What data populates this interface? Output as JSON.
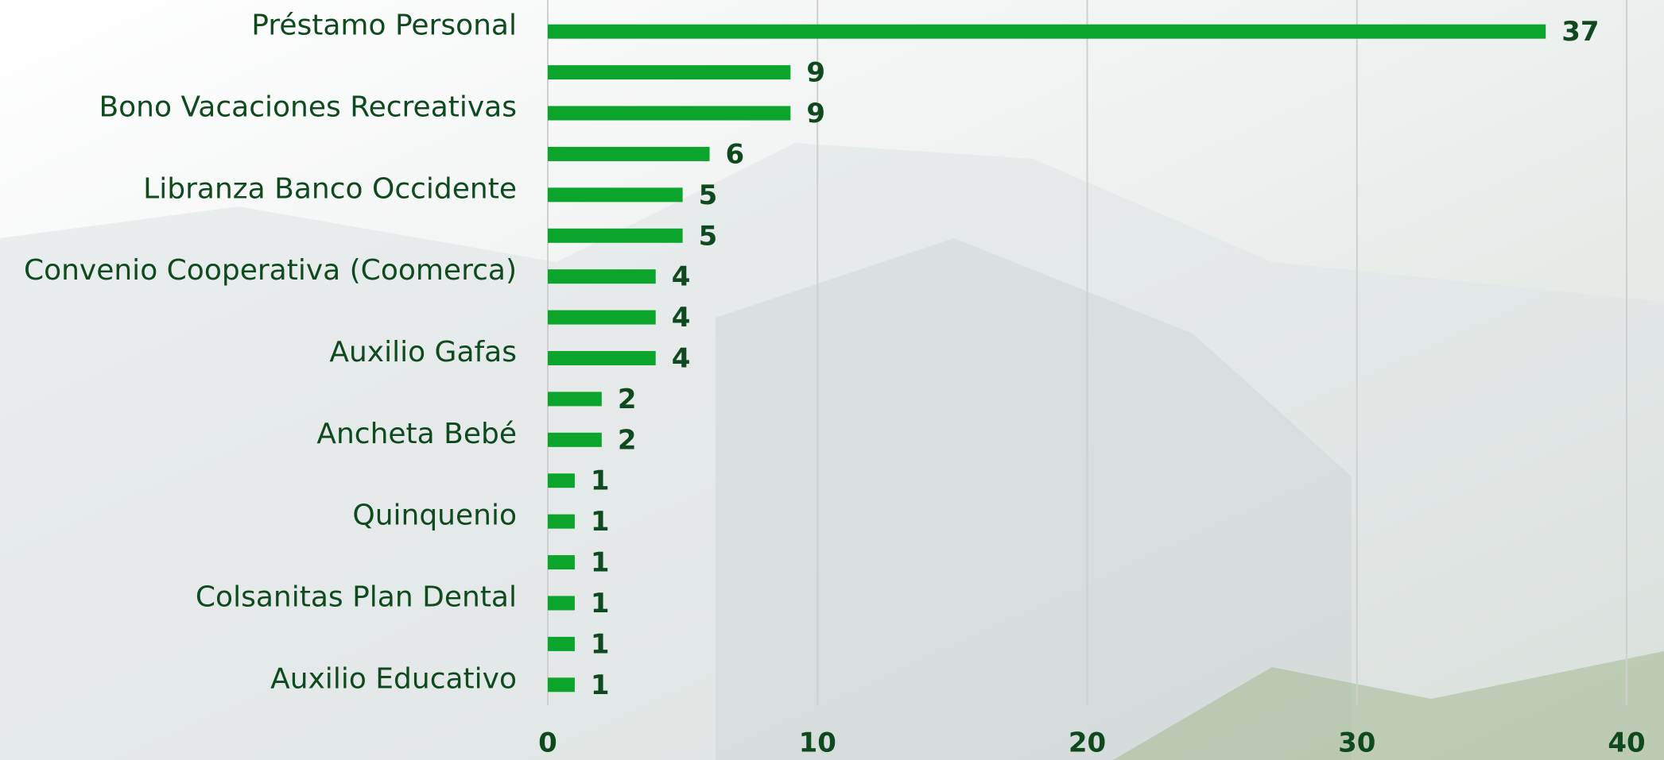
{
  "chart_data": {
    "type": "bar",
    "orientation": "horizontal",
    "categories": [
      "Préstamo Personal",
      null,
      "Bono Vacaciones Recreativas",
      null,
      "Libranza Banco Occidente",
      null,
      "Convenio Cooperativa (Coomerca)",
      null,
      "Auxilio Gafas",
      null,
      "Ancheta Bebé",
      null,
      "Quinquenio",
      null,
      "Colsanitas Plan Dental",
      null,
      "Auxilio Educativo"
    ],
    "values": [
      37,
      9,
      9,
      6,
      5,
      5,
      4,
      4,
      4,
      2,
      2,
      1,
      1,
      1,
      1,
      1,
      1
    ],
    "color": "#0aa52a",
    "xlim": [
      0,
      40
    ],
    "xticks": [
      0,
      10,
      20,
      30,
      40
    ],
    "grid": true
  }
}
